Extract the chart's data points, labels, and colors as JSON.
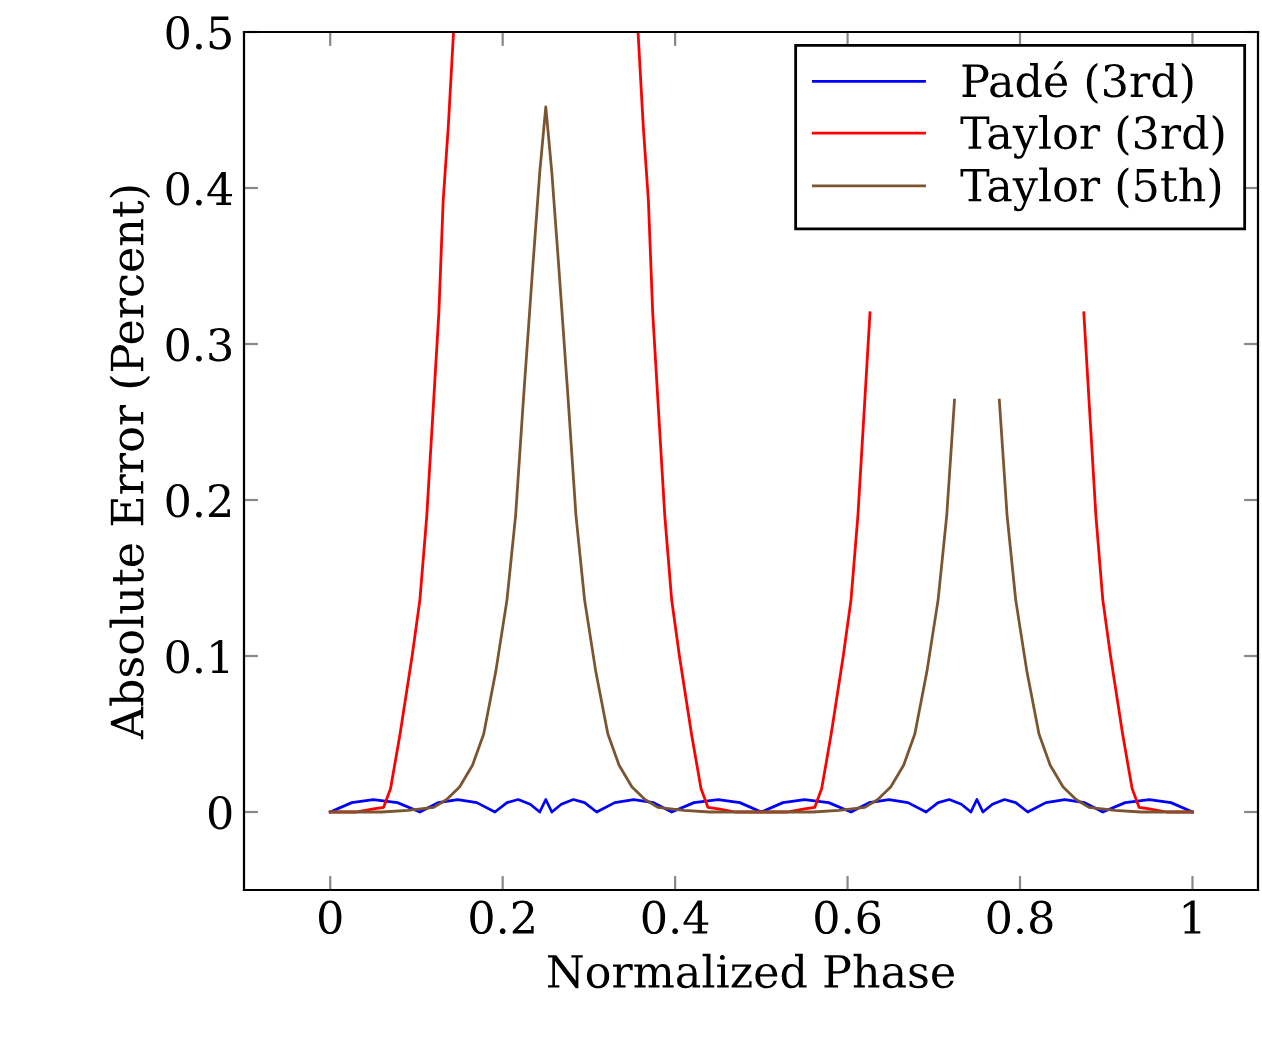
{
  "chart_data": {
    "type": "line",
    "xlabel": "Normalized Phase",
    "ylabel": "Absolute Error (Percent)",
    "xlim": [
      -0.1,
      1.076
    ],
    "ylim": [
      -0.05,
      0.5
    ],
    "xticks": [
      0,
      0.2,
      0.4,
      0.6,
      0.8,
      1
    ],
    "yticks": [
      0,
      0.1,
      0.2,
      0.3,
      0.4,
      0.5
    ],
    "grid": false,
    "legend": "top right",
    "marker": "none",
    "line_style": "solid",
    "series": [
      {
        "name": "Padé (3rd)",
        "color": "#0000ff",
        "x": [
          0,
          0.025,
          0.05,
          0.078,
          0.104,
          0.125,
          0.148,
          0.17,
          0.191,
          0.205,
          0.218,
          0.232,
          0.243,
          0.25,
          0.257,
          0.268,
          0.282,
          0.295,
          0.309,
          0.33,
          0.352,
          0.375,
          0.396,
          0.422,
          0.45,
          0.475,
          0.5,
          0.525,
          0.55,
          0.578,
          0.604,
          0.625,
          0.648,
          0.67,
          0.691,
          0.705,
          0.718,
          0.732,
          0.743,
          0.75,
          0.757,
          0.768,
          0.782,
          0.795,
          0.809,
          0.83,
          0.852,
          0.875,
          0.896,
          0.922,
          0.95,
          0.975,
          1.0
        ],
        "values": [
          0,
          0.006,
          0.008,
          0.006,
          0,
          0.006,
          0.008,
          0.006,
          0,
          0.006,
          0.008,
          0.005,
          0,
          0.008,
          0,
          0.005,
          0.008,
          0.006,
          0,
          0.006,
          0.008,
          0.006,
          0,
          0.006,
          0.008,
          0.006,
          0,
          0.006,
          0.008,
          0.006,
          0,
          0.006,
          0.008,
          0.006,
          0,
          0.006,
          0.008,
          0.005,
          0,
          0.008,
          0,
          0.005,
          0.008,
          0.006,
          0,
          0.006,
          0.008,
          0.006,
          0,
          0.006,
          0.008,
          0.006,
          0
        ]
      },
      {
        "name": "Taylor (3rd)",
        "color": "#ff0000",
        "x": [
          0,
          0.03,
          0.05,
          0.062,
          0.07,
          0.081,
          0.095,
          0.104,
          0.112,
          0.12,
          0.126,
          0.131,
          0.137,
          0.143,
          0.25,
          0.357,
          0.363,
          0.369,
          0.374,
          0.38,
          0.388,
          0.396,
          0.405,
          0.419,
          0.43,
          0.438,
          0.45,
          0.47,
          0.5,
          0.53,
          0.55,
          0.562,
          0.57,
          0.581,
          0.595,
          0.604,
          0.612,
          0.62,
          0.626,
          0.631,
          0.637,
          0.643,
          0.75,
          0.857,
          0.863,
          0.869,
          0.874,
          0.88,
          0.888,
          0.896,
          0.905,
          0.919,
          0.93,
          0.938,
          0.95,
          0.97,
          1.0
        ],
        "values": [
          0,
          0,
          0.002,
          0.003,
          0.015,
          0.05,
          0.1,
          0.136,
          0.19,
          0.264,
          0.32,
          0.392,
          0.44,
          0.5,
          null,
          0.5,
          0.44,
          0.392,
          0.32,
          0.264,
          0.19,
          0.136,
          0.1,
          0.05,
          0.015,
          0.003,
          0.002,
          0,
          0,
          0,
          0.002,
          0.003,
          0.015,
          0.05,
          0.1,
          0.136,
          0.19,
          0.264,
          0.32,
          null,
          null,
          null,
          null,
          null,
          null,
          null,
          0.32,
          0.264,
          0.19,
          0.136,
          0.1,
          0.05,
          0.015,
          0.003,
          0.002,
          0,
          0
        ]
      },
      {
        "name": "Taylor (5th)",
        "color": "#7b5530",
        "x": [
          0,
          0.06,
          0.09,
          0.12,
          0.135,
          0.15,
          0.165,
          0.178,
          0.192,
          0.205,
          0.215,
          0.224,
          0.235,
          0.243,
          0.25,
          0.257,
          0.265,
          0.276,
          0.285,
          0.295,
          0.308,
          0.322,
          0.335,
          0.35,
          0.365,
          0.38,
          0.41,
          0.44,
          0.5,
          0.56,
          0.59,
          0.62,
          0.635,
          0.65,
          0.665,
          0.678,
          0.692,
          0.705,
          0.715,
          0.724,
          0.735,
          0.743,
          0.75,
          0.757,
          0.765,
          0.776,
          0.785,
          0.795,
          0.808,
          0.822,
          0.835,
          0.85,
          0.865,
          0.88,
          0.91,
          0.94,
          1.0
        ],
        "values": [
          0,
          0,
          0.001,
          0.003,
          0.008,
          0.016,
          0.03,
          0.05,
          0.09,
          0.136,
          0.19,
          0.264,
          0.35,
          0.41,
          0.452,
          0.41,
          0.35,
          0.264,
          0.19,
          0.136,
          0.09,
          0.05,
          0.03,
          0.016,
          0.008,
          0.003,
          0.001,
          0,
          0,
          0,
          0.001,
          0.003,
          0.008,
          0.016,
          0.03,
          0.05,
          0.09,
          0.136,
          0.19,
          0.264,
          null,
          null,
          null,
          null,
          null,
          0.264,
          0.19,
          0.136,
          0.09,
          0.05,
          0.03,
          0.016,
          0.008,
          0.003,
          0.001,
          0,
          0
        ]
      }
    ]
  }
}
